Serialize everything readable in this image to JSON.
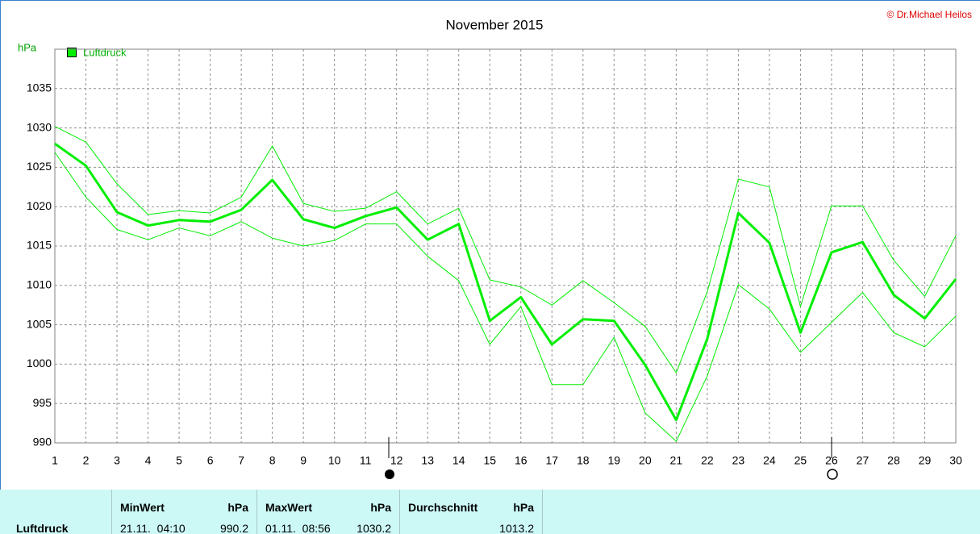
{
  "chart_data": {
    "type": "line",
    "title": "November 2015",
    "copyright": "© Dr.Michael Heilos",
    "y_label": "hPa",
    "x": [
      1,
      2,
      3,
      4,
      5,
      6,
      7,
      8,
      9,
      10,
      11,
      12,
      13,
      14,
      15,
      16,
      17,
      18,
      19,
      20,
      21,
      22,
      23,
      24,
      25,
      26,
      27,
      28,
      29,
      30
    ],
    "xlim": [
      1,
      30
    ],
    "xticks": [
      1,
      2,
      3,
      4,
      5,
      6,
      7,
      8,
      9,
      10,
      11,
      12,
      13,
      14,
      15,
      16,
      17,
      18,
      19,
      20,
      21,
      22,
      23,
      24,
      25,
      26,
      27,
      28,
      29,
      30
    ],
    "ylim": [
      990,
      1040
    ],
    "yticks": [
      990,
      995,
      1000,
      1005,
      1010,
      1015,
      1020,
      1025,
      1030,
      1035
    ],
    "grid": true,
    "series": [
      {
        "name": "Luftdruck",
        "color": "#00ee00",
        "width": 3,
        "values": [
          1028.0,
          1025.2,
          1019.3,
          1017.6,
          1018.3,
          1018.1,
          1019.6,
          1023.4,
          1018.4,
          1017.3,
          1018.8,
          1019.9,
          1015.8,
          1017.8,
          1005.5,
          1008.5,
          1002.5,
          1005.7,
          1005.5,
          999.9,
          992.9,
          1003.2,
          1019.2,
          1015.4,
          1004.0,
          1014.2,
          1015.5,
          1008.8,
          1005.8,
          1010.8
        ]
      },
      {
        "color": "#00ee00",
        "width": 1,
        "values": [
          1030.2,
          1028.2,
          1022.9,
          1019.0,
          1019.5,
          1019.2,
          1021.2,
          1027.7,
          1020.4,
          1019.4,
          1019.8,
          1021.9,
          1017.8,
          1019.8,
          1010.7,
          1009.8,
          1007.5,
          1010.6,
          1007.8,
          1004.8,
          998.9,
          1009.2,
          1023.5,
          1022.5,
          1007.3,
          1020.1,
          1020.1,
          1013.2,
          1008.6,
          1016.3
        ]
      },
      {
        "color": "#00ee00",
        "width": 1,
        "values": [
          1026.9,
          1021.2,
          1017.1,
          1015.8,
          1017.3,
          1016.3,
          1018.1,
          1016.0,
          1015.0,
          1015.7,
          1017.8,
          1017.8,
          1013.7,
          1010.6,
          1002.5,
          1007.3,
          997.4,
          997.4,
          1003.4,
          993.8,
          990.2,
          998.5,
          1010.1,
          1007.0,
          1001.5,
          1005.3,
          1009.1,
          1004.0,
          1002.2,
          1006.1
        ]
      }
    ]
  },
  "table": {
    "row_label": "Luftdruck",
    "columns": [
      {
        "header": "MinWert",
        "unit": "hPa",
        "time": "21.11.  04:10",
        "value": "990.2"
      },
      {
        "header": "MaxWert",
        "unit": "hPa",
        "time": "01.11.  08:56",
        "value": "1030.2"
      },
      {
        "header": "Durchschnitt",
        "unit": "hPa",
        "value": "1013.2"
      }
    ]
  }
}
